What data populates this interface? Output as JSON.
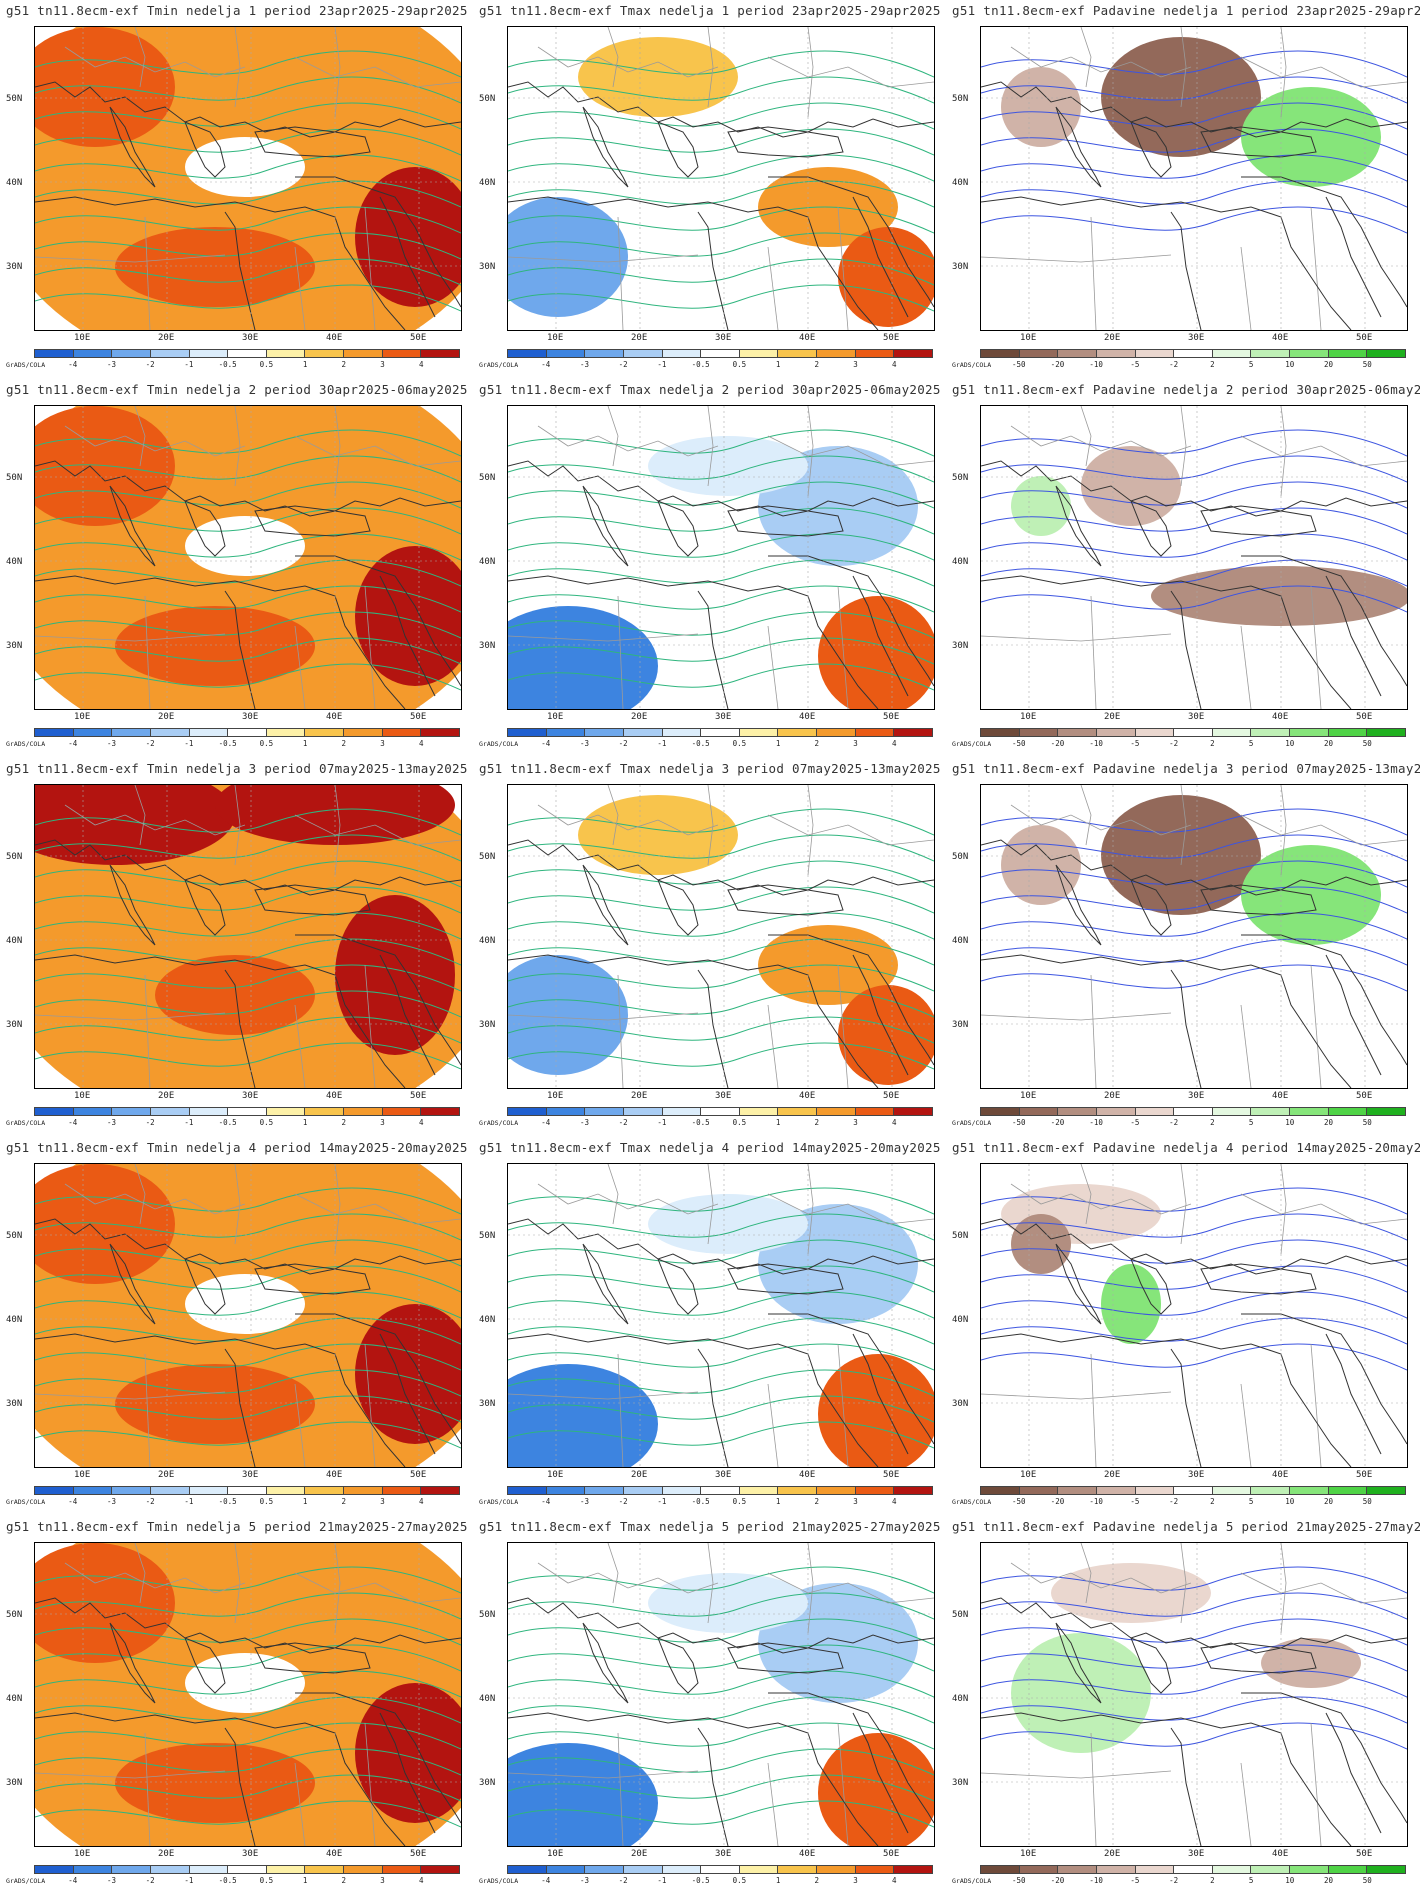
{
  "model": "g51",
  "run": "tn11.8ecm-exf",
  "week_word": "nedelja",
  "period_word": "period",
  "variables": [
    "Tmin",
    "Tmax",
    "Padavine"
  ],
  "weeks": [
    {
      "num": "1",
      "period": "23apr2025-29apr2025"
    },
    {
      "num": "2",
      "period": "30apr2025-06may2025"
    },
    {
      "num": "3",
      "period": "07may2025-13may2025"
    },
    {
      "num": "4",
      "period": "14may2025-20may2025"
    },
    {
      "num": "5",
      "period": "21may2025-27may2025"
    }
  ],
  "lat_labels": [
    "50N",
    "40N",
    "30N"
  ],
  "lon_labels": [
    "10E",
    "20E",
    "30E",
    "40E",
    "50E"
  ],
  "credit": "GrADS/COLA",
  "temp_colorbar": {
    "ticks": [
      "-4",
      "-3",
      "-2",
      "-1",
      "-0.5",
      "0.5",
      "1",
      "2",
      "3",
      "4"
    ],
    "colors": [
      "#1f5fd0",
      "#3d84e0",
      "#6fa8ec",
      "#a9cdf4",
      "#dcedfb",
      "#ffffff",
      "#fdf1a8",
      "#f8c44c",
      "#f49a2c",
      "#ea5a14",
      "#b31410"
    ]
  },
  "precip_colorbar": {
    "ticks": [
      "-50",
      "-20",
      "-10",
      "-5",
      "-2",
      "2",
      "5",
      "10",
      "20",
      "50"
    ],
    "colors": [
      "#6e4a3a",
      "#93695a",
      "#b28e80",
      "#d0b3a8",
      "#ead7cf",
      "#ffffff",
      "#e4f8e0",
      "#bff0b6",
      "#86e57a",
      "#4fd346",
      "#1fb01e"
    ]
  },
  "dominant_anomaly": {
    "Tmin": [
      "warm",
      "warm",
      "hot",
      "warm",
      "warm"
    ],
    "Tmax": [
      "mixed",
      "cool",
      "mixed",
      "cool",
      "cool"
    ],
    "Padavine": [
      "mixed",
      "dry-east",
      "mixed",
      "neutral",
      "wet-west"
    ]
  }
}
